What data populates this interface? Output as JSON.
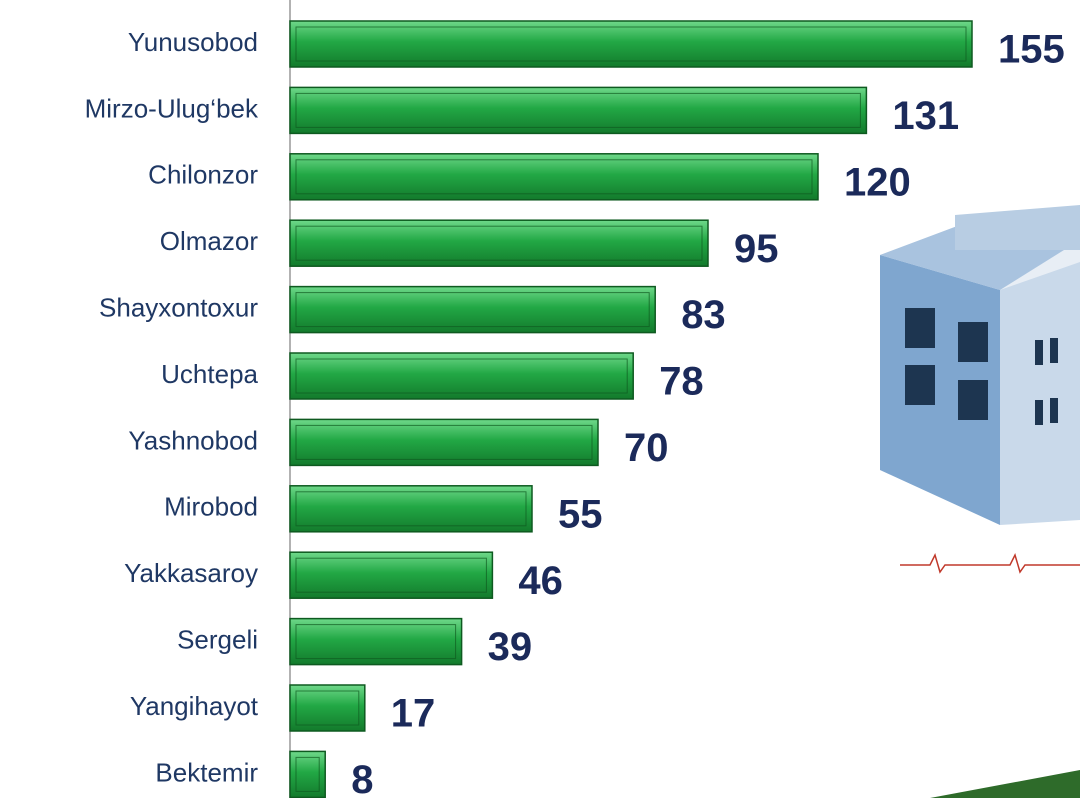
{
  "chart_data": {
    "type": "bar",
    "orientation": "horizontal",
    "categories": [
      "Yunusobod",
      "Mirzo-Ulug‘bek",
      "Chilonzor",
      "Olmazor",
      "Shayxontoxur",
      "Uchtepa",
      "Yashnobod",
      "Mirobod",
      "Yakkasaroy",
      "Sergeli",
      "Yangihayot",
      "Bektemir"
    ],
    "values": [
      155,
      131,
      120,
      95,
      83,
      78,
      70,
      55,
      46,
      39,
      17,
      8
    ],
    "color": "#22a845"
  }
}
